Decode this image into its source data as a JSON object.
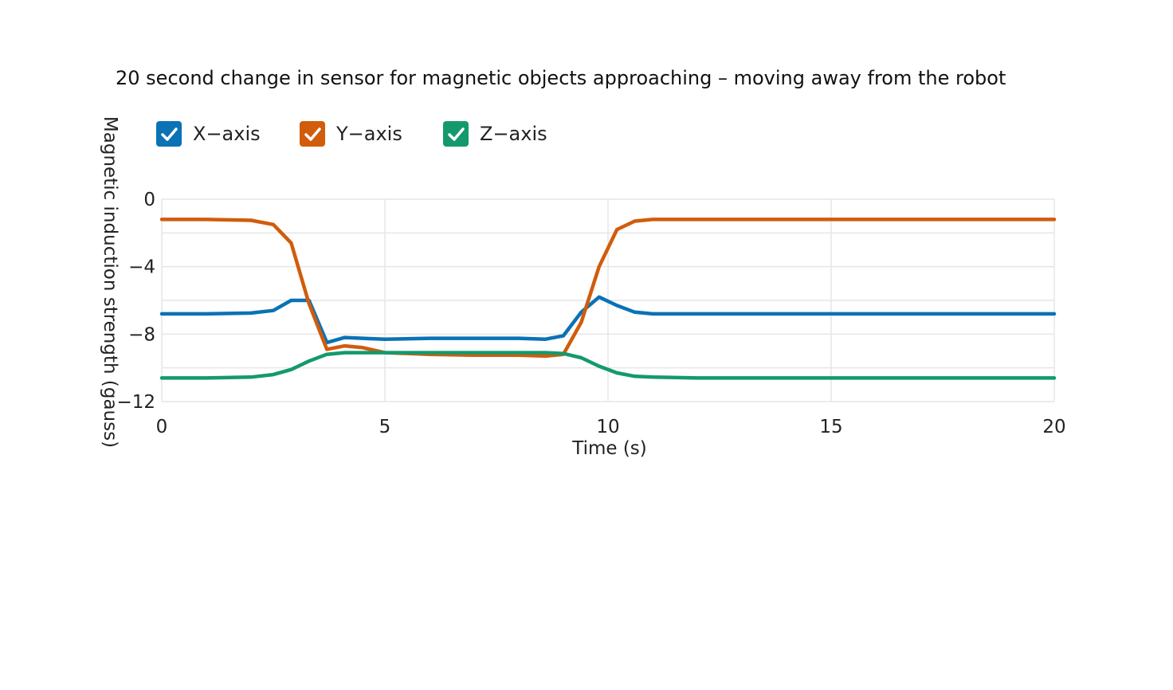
{
  "chart_data": {
    "type": "line",
    "title": "20 second change in sensor for magnetic objects approaching – moving away from the robot",
    "xlabel": "Time (s)",
    "ylabel": "Magnetic induction strength (gauss)",
    "xlim": [
      0,
      20
    ],
    "ylim": [
      -12,
      0
    ],
    "x_ticks": [
      0,
      5,
      10,
      15,
      20
    ],
    "x_tick_labels": [
      "0",
      "5",
      "10",
      "15",
      "20"
    ],
    "y_ticks": [
      0,
      -4,
      -8,
      -12
    ],
    "y_tick_labels": [
      "0",
      "−4",
      "−8",
      "−12"
    ],
    "grid": true,
    "legend_position": "top-left",
    "series": [
      {
        "name": "X-axis",
        "legend_label": "X−axis",
        "color": "#0a72b5",
        "x": [
          0,
          1,
          2,
          2.5,
          2.9,
          3.3,
          3.7,
          4.1,
          4.5,
          5,
          6,
          7,
          8,
          8.6,
          9.0,
          9.4,
          9.8,
          10.2,
          10.6,
          11,
          12,
          13,
          14,
          15,
          16,
          17,
          18,
          19,
          20
        ],
        "y": [
          -6.8,
          -6.8,
          -6.75,
          -6.6,
          -6.0,
          -6.0,
          -8.5,
          -8.2,
          -8.25,
          -8.3,
          -8.25,
          -8.25,
          -8.25,
          -8.3,
          -8.1,
          -6.7,
          -5.8,
          -6.3,
          -6.7,
          -6.8,
          -6.8,
          -6.8,
          -6.8,
          -6.8,
          -6.8,
          -6.8,
          -6.8,
          -6.8,
          -6.8
        ]
      },
      {
        "name": "Y-axis",
        "legend_label": "Y−axis",
        "color": "#d05c0c",
        "x": [
          0,
          1,
          2,
          2.5,
          2.9,
          3.3,
          3.7,
          4.1,
          4.5,
          5,
          6,
          7,
          8,
          8.6,
          9.0,
          9.4,
          9.8,
          10.2,
          10.6,
          11,
          12,
          13,
          14,
          15,
          16,
          17,
          18,
          19,
          20
        ],
        "y": [
          -1.2,
          -1.2,
          -1.25,
          -1.5,
          -2.6,
          -6.2,
          -8.9,
          -8.7,
          -8.8,
          -9.1,
          -9.2,
          -9.25,
          -9.25,
          -9.3,
          -9.2,
          -7.3,
          -4.0,
          -1.8,
          -1.3,
          -1.2,
          -1.2,
          -1.2,
          -1.2,
          -1.2,
          -1.2,
          -1.2,
          -1.2,
          -1.2,
          -1.2
        ]
      },
      {
        "name": "Z-axis",
        "legend_label": "Z−axis",
        "color": "#14996e",
        "x": [
          0,
          1,
          2,
          2.5,
          2.9,
          3.3,
          3.7,
          4.1,
          4.5,
          5,
          6,
          7,
          8,
          8.6,
          9.0,
          9.4,
          9.8,
          10.2,
          10.6,
          11,
          12,
          13,
          14,
          15,
          16,
          17,
          18,
          19,
          20
        ],
        "y": [
          -10.6,
          -10.6,
          -10.55,
          -10.4,
          -10.1,
          -9.6,
          -9.2,
          -9.1,
          -9.1,
          -9.1,
          -9.1,
          -9.1,
          -9.1,
          -9.1,
          -9.15,
          -9.4,
          -9.9,
          -10.3,
          -10.5,
          -10.55,
          -10.6,
          -10.6,
          -10.6,
          -10.6,
          -10.6,
          -10.6,
          -10.6,
          -10.6,
          -10.6
        ]
      }
    ]
  }
}
